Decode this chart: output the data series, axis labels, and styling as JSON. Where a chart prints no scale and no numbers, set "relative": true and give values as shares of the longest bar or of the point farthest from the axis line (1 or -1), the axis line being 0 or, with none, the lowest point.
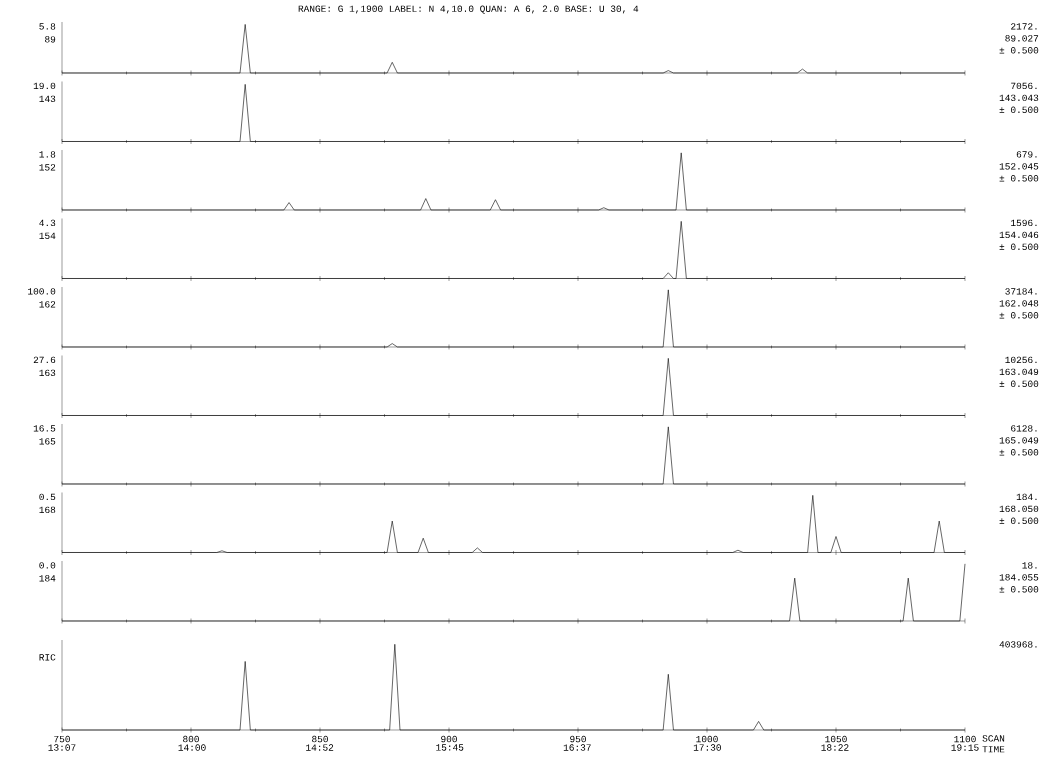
{
  "chart_data": [
    {
      "type": "line",
      "relative": true,
      "title": "RANGE: G   1,1900   LABEL: N  4,10.0   QUAN: A  6, 2.0   BASE: U 30,  4",
      "color": "#000000",
      "xlim": [
        750,
        1100
      ],
      "xticks": [
        750,
        800,
        850,
        900,
        950,
        1000,
        1050,
        1100
      ],
      "tick_labels": false,
      "annotations": [
        "5.8",
        "89",
        "2172.",
        "89.027",
        "± 0.500"
      ],
      "x": [
        750,
        819,
        821,
        823,
        876,
        878,
        880,
        983,
        985,
        987,
        1035,
        1037,
        1039,
        1100
      ],
      "values": [
        0,
        0,
        1,
        0,
        0,
        0.22,
        0,
        0,
        0.05,
        0,
        0,
        0.08,
        0,
        0
      ]
    },
    {
      "type": "line",
      "relative": true,
      "color": "#000000",
      "xlim": [
        750,
        1100
      ],
      "xticks": [
        750,
        800,
        850,
        900,
        950,
        1000,
        1050,
        1100
      ],
      "tick_labels": false,
      "annotations": [
        "19.0",
        "143",
        "7056.",
        "143.043",
        "± 0.500"
      ],
      "x": [
        750,
        819,
        821,
        823,
        1100
      ],
      "values": [
        0,
        0,
        1,
        0,
        0
      ]
    },
    {
      "type": "line",
      "relative": true,
      "color": "#000000",
      "xlim": [
        750,
        1100
      ],
      "xticks": [
        750,
        800,
        850,
        900,
        950,
        1000,
        1050,
        1100
      ],
      "tick_labels": false,
      "annotations": [
        "1.8",
        "152",
        "679.",
        "152.045",
        "± 0.500"
      ],
      "x": [
        750,
        836,
        838,
        840,
        889,
        891,
        893,
        916,
        918,
        920,
        958,
        960,
        962,
        988,
        990,
        992,
        1100
      ],
      "values": [
        0,
        0,
        0.13,
        0,
        0,
        0.2,
        0,
        0,
        0.18,
        0,
        0,
        0.04,
        0,
        0,
        1,
        0,
        0
      ]
    },
    {
      "type": "line",
      "relative": true,
      "color": "#000000",
      "xlim": [
        750,
        1100
      ],
      "xticks": [
        750,
        800,
        850,
        900,
        950,
        1000,
        1050,
        1100
      ],
      "tick_labels": false,
      "annotations": [
        "4.3",
        "154",
        "1596.",
        "154.046",
        "± 0.500"
      ],
      "x": [
        750,
        983,
        985,
        987,
        988,
        990,
        992,
        1100
      ],
      "values": [
        0,
        0,
        0.1,
        0,
        0,
        1,
        0,
        0
      ]
    },
    {
      "type": "line",
      "relative": true,
      "color": "#000000",
      "xlim": [
        750,
        1100
      ],
      "xticks": [
        750,
        800,
        850,
        900,
        950,
        1000,
        1050,
        1100
      ],
      "tick_labels": false,
      "annotations": [
        "100.0",
        "162",
        "37184.",
        "162.048",
        "± 0.500"
      ],
      "x": [
        750,
        876,
        878,
        880,
        983,
        985,
        987,
        1100
      ],
      "values": [
        0,
        0,
        0.06,
        0,
        0,
        1,
        0,
        0
      ]
    },
    {
      "type": "line",
      "relative": true,
      "color": "#000000",
      "xlim": [
        750,
        1100
      ],
      "xticks": [
        750,
        800,
        850,
        900,
        950,
        1000,
        1050,
        1100
      ],
      "tick_labels": false,
      "annotations": [
        "27.6",
        "163",
        "10256.",
        "163.049",
        "± 0.500"
      ],
      "x": [
        750,
        983,
        985,
        987,
        1100
      ],
      "values": [
        0,
        0,
        1,
        0,
        0
      ]
    },
    {
      "type": "line",
      "relative": true,
      "color": "#000000",
      "xlim": [
        750,
        1100
      ],
      "xticks": [
        750,
        800,
        850,
        900,
        950,
        1000,
        1050,
        1100
      ],
      "tick_labels": false,
      "annotations": [
        "16.5",
        "165",
        "6128.",
        "165.049",
        "± 0.500"
      ],
      "x": [
        750,
        983,
        985,
        987,
        1100
      ],
      "values": [
        0,
        0,
        1,
        0,
        0
      ]
    },
    {
      "type": "line",
      "relative": true,
      "color": "#000000",
      "xlim": [
        750,
        1100
      ],
      "xticks": [
        750,
        800,
        850,
        900,
        950,
        1000,
        1050,
        1100
      ],
      "tick_labels": false,
      "annotations": [
        "0.5",
        "168",
        "184.",
        "168.050",
        "± 0.500"
      ],
      "x": [
        750,
        810,
        812,
        814,
        876,
        878,
        880,
        888,
        890,
        892,
        909,
        911,
        913,
        1010,
        1012,
        1014,
        1039,
        1041,
        1043,
        1048,
        1050,
        1052,
        1088,
        1090,
        1092,
        1100
      ],
      "values": [
        0,
        0,
        0.03,
        0,
        0,
        0.55,
        0,
        0,
        0.25,
        0,
        0,
        0.08,
        0,
        0,
        0.04,
        0,
        0,
        1,
        0,
        0,
        0.28,
        0,
        0,
        0.55,
        0,
        0
      ]
    },
    {
      "type": "line",
      "relative": true,
      "color": "#000000",
      "xlim": [
        750,
        1100
      ],
      "xticks": [
        750,
        800,
        850,
        900,
        950,
        1000,
        1050,
        1100
      ],
      "tick_labels": false,
      "annotations": [
        "0.0",
        "184",
        "18.",
        "184.055",
        "± 0.500"
      ],
      "x": [
        750,
        1032,
        1034,
        1036,
        1076,
        1078,
        1080,
        1098,
        1100
      ],
      "values": [
        0,
        0,
        0.75,
        0,
        0,
        0.75,
        0,
        0,
        1
      ]
    },
    {
      "type": "line",
      "relative": true,
      "color": "#000000",
      "xlim": [
        750,
        1100
      ],
      "xticks": [
        750,
        800,
        850,
        900,
        950,
        1000,
        1050,
        1100
      ],
      "tick_labels": "x",
      "xlabel": "SCAN",
      "x2label": "TIME",
      "x2lim": [
        13.116667,
        19.25
      ],
      "x2ticks": [
        {
          "value": 13.116667,
          "label": "13:07"
        },
        {
          "value": 14,
          "label": "14:00"
        },
        {
          "value": 14.866667,
          "label": "14:52"
        },
        {
          "value": 15.75,
          "label": "15:45"
        },
        {
          "value": 16.616667,
          "label": "16:37"
        },
        {
          "value": 17.5,
          "label": "17:30"
        },
        {
          "value": 18.366667,
          "label": "18:22"
        },
        {
          "value": 19.25,
          "label": "19:15"
        }
      ],
      "annotations": [
        "RIC",
        "403968."
      ],
      "x": [
        750,
        819,
        821,
        823,
        877,
        879,
        881,
        983,
        985,
        987,
        1018,
        1020,
        1022,
        1100
      ],
      "values": [
        0,
        0,
        0.8,
        0,
        0,
        1,
        0,
        0,
        0.65,
        0,
        0,
        0.1,
        0,
        0
      ]
    }
  ]
}
